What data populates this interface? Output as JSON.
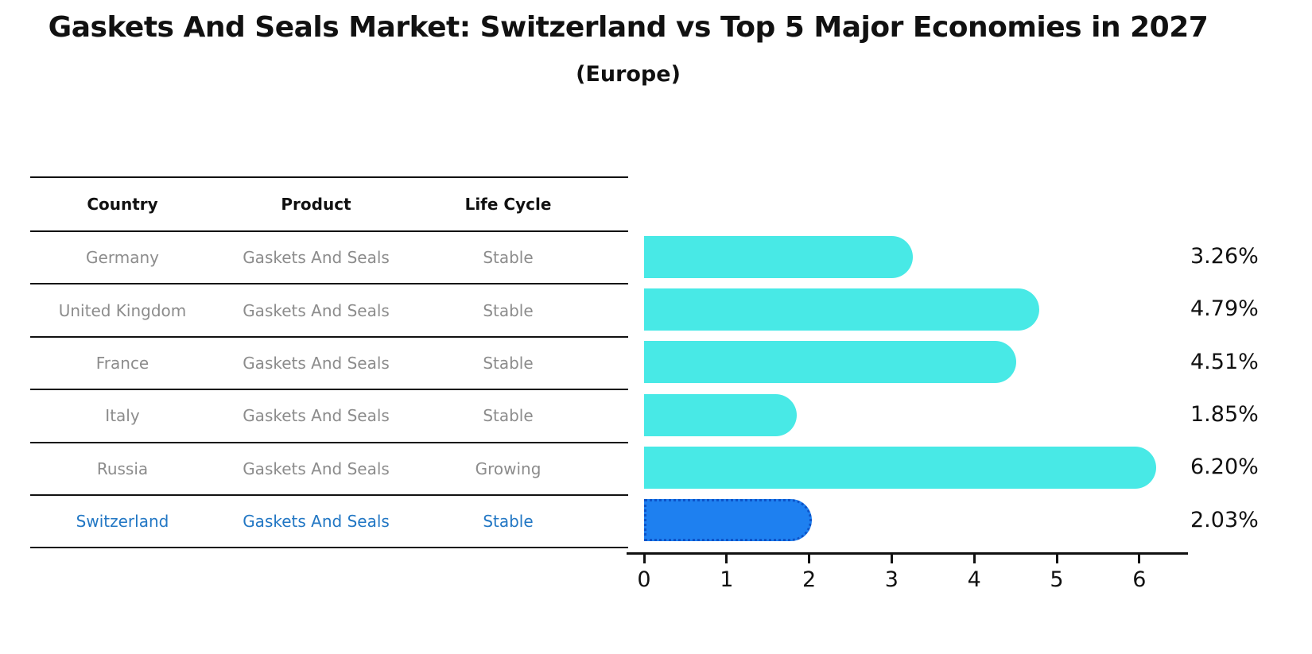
{
  "title": "Gaskets And Seals Market: Switzerland vs Top 5 Major Economies in 2027",
  "subtitle": "(Europe)",
  "table": {
    "columns": [
      "Country",
      "Product",
      "Life Cycle"
    ],
    "rows": [
      {
        "country": "Germany",
        "product": "Gaskets And Seals",
        "life_cycle": "Stable",
        "highlight": false
      },
      {
        "country": "United Kingdom",
        "product": "Gaskets And Seals",
        "life_cycle": "Stable",
        "highlight": false
      },
      {
        "country": "France",
        "product": "Gaskets And Seals",
        "life_cycle": "Stable",
        "highlight": false
      },
      {
        "country": "Italy",
        "product": "Gaskets And Seals",
        "life_cycle": "Stable",
        "highlight": false
      },
      {
        "country": "Russia",
        "product": "Gaskets And Seals",
        "life_cycle": "Growing",
        "highlight": false
      },
      {
        "country": "Switzerland",
        "product": "Gaskets And Seals",
        "life_cycle": "Stable",
        "highlight": true
      }
    ]
  },
  "chart_data": {
    "type": "bar",
    "orientation": "horizontal",
    "title": "Gaskets And Seals Market: Switzerland vs Top 5 Major Economies in 2027",
    "subtitle": "(Europe)",
    "categories": [
      "Germany",
      "United Kingdom",
      "France",
      "Italy",
      "Russia",
      "Switzerland"
    ],
    "values": [
      3.26,
      4.79,
      4.51,
      1.85,
      6.2,
      2.03
    ],
    "value_labels": [
      "3.26%",
      "4.79%",
      "4.51%",
      "1.85%",
      "6.20%",
      "2.03%"
    ],
    "x_ticks": [
      0,
      1,
      2,
      3,
      4,
      5,
      6
    ],
    "xlim": [
      0,
      6.6
    ],
    "grid": false,
    "bar_color": "#48e9e6",
    "highlight_index": 5,
    "highlight_color": "#1e80f0",
    "highlight_border_color": "#0d53c8",
    "axis_color": "#111111",
    "label_color": "#111111",
    "row_text_color": "#8c8c8c",
    "highlight_text_color": "#2277c4"
  }
}
